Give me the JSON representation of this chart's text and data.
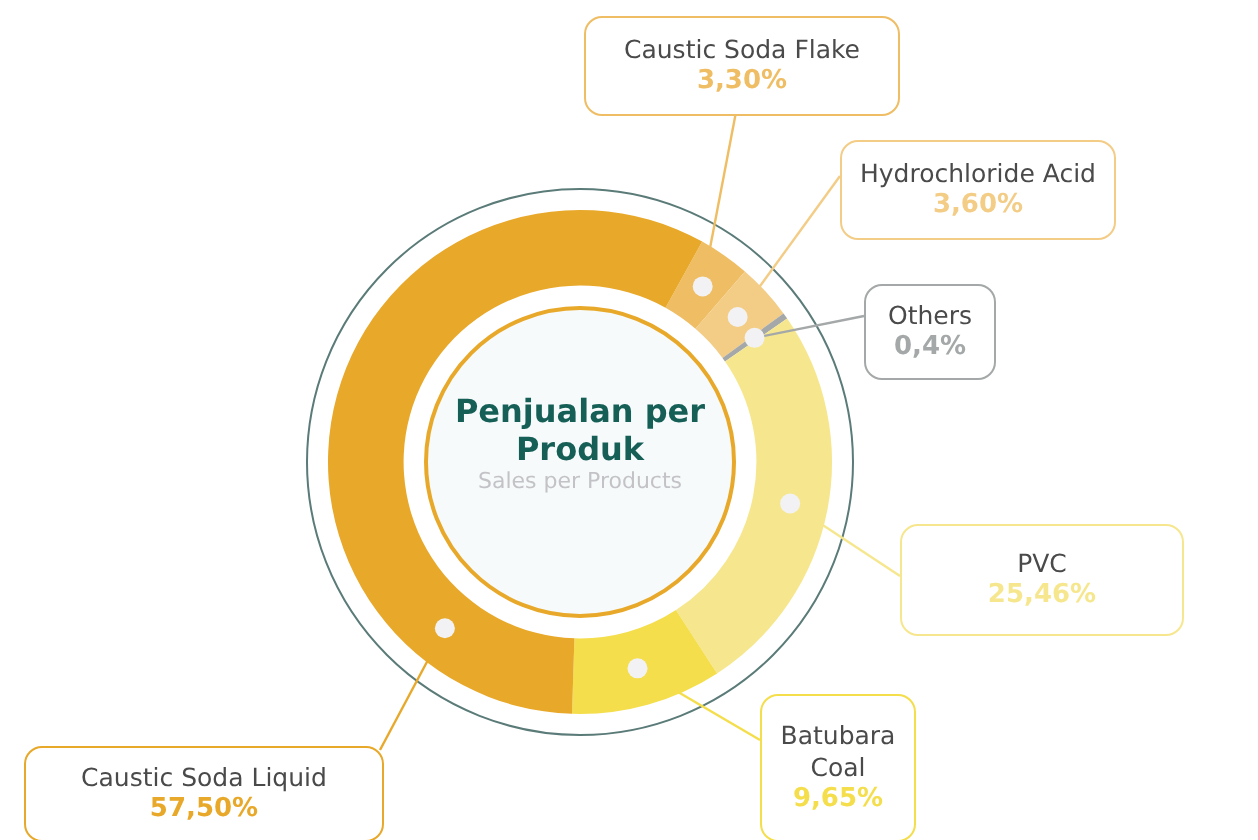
{
  "chart_data": {
    "type": "donut",
    "title": "Penjualan per Produk",
    "subtitle": "Sales per Products",
    "categories": [
      "Caustic Soda Flake",
      "Hydrochloride Acid",
      "Others",
      "PVC",
      "Batubara\nCoal",
      "Caustic Soda Liquid"
    ],
    "values": [
      3.3,
      3.6,
      0.4,
      25.46,
      9.65,
      57.5
    ],
    "value_labels": [
      "3,30%",
      "3,60%",
      "0,4%",
      "25,46%",
      "9,65%",
      "57,50%"
    ],
    "colors": [
      "#efbd63",
      "#f3cc86",
      "#a4a8a8",
      "#f6e78e",
      "#f4de4c",
      "#e8a82a"
    ],
    "legend": false
  }
}
